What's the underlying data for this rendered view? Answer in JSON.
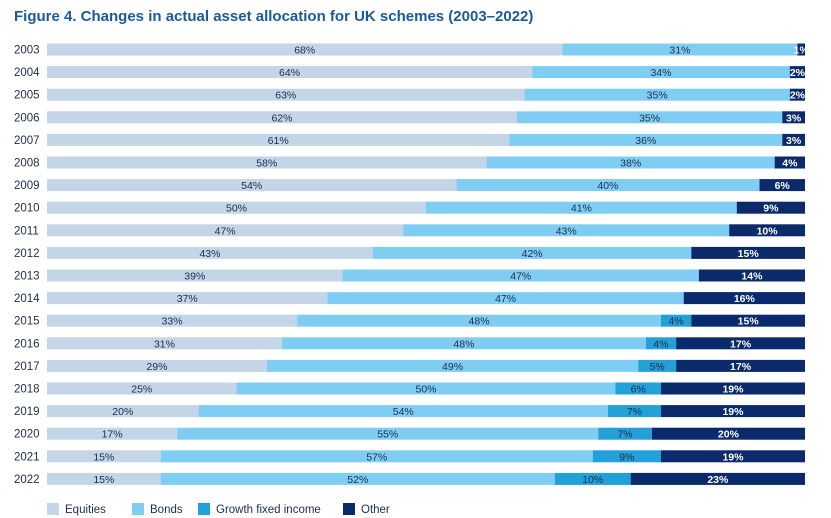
{
  "chart_data": {
    "type": "bar",
    "orientation": "horizontal",
    "stacked": true,
    "title": "Figure 4. Changes in actual asset allocation for UK schemes (2003–2022)",
    "categories": [
      "2003",
      "2004",
      "2005",
      "2006",
      "2007",
      "2008",
      "2009",
      "2010",
      "2011",
      "2012",
      "2013",
      "2014",
      "2015",
      "2016",
      "2017",
      "2018",
      "2019",
      "2020",
      "2021",
      "2022"
    ],
    "series": [
      {
        "name": "Equities",
        "color": "#c3d5e6",
        "values": [
          68,
          64,
          63,
          62,
          61,
          58,
          54,
          50,
          47,
          43,
          39,
          37,
          33,
          31,
          29,
          25,
          20,
          17,
          15,
          15
        ]
      },
      {
        "name": "Bonds",
        "color": "#7fcdf3",
        "values": [
          31,
          34,
          35,
          35,
          36,
          38,
          40,
          41,
          43,
          42,
          47,
          47,
          48,
          48,
          49,
          50,
          54,
          55,
          57,
          52
        ]
      },
      {
        "name": "Growth fixed income",
        "color": "#22a0d8",
        "values": [
          0,
          0,
          0,
          0,
          0,
          0,
          0,
          0,
          0,
          0,
          0,
          0,
          4,
          4,
          5,
          6,
          7,
          7,
          9,
          10
        ]
      },
      {
        "name": "Other",
        "color": "#0b2a6b",
        "values": [
          1,
          2,
          2,
          3,
          3,
          4,
          6,
          9,
          10,
          15,
          14,
          16,
          15,
          17,
          17,
          19,
          19,
          20,
          19,
          23
        ]
      }
    ],
    "data_label_suffix": "%",
    "legend_position": "bottom-left",
    "grid": false
  }
}
